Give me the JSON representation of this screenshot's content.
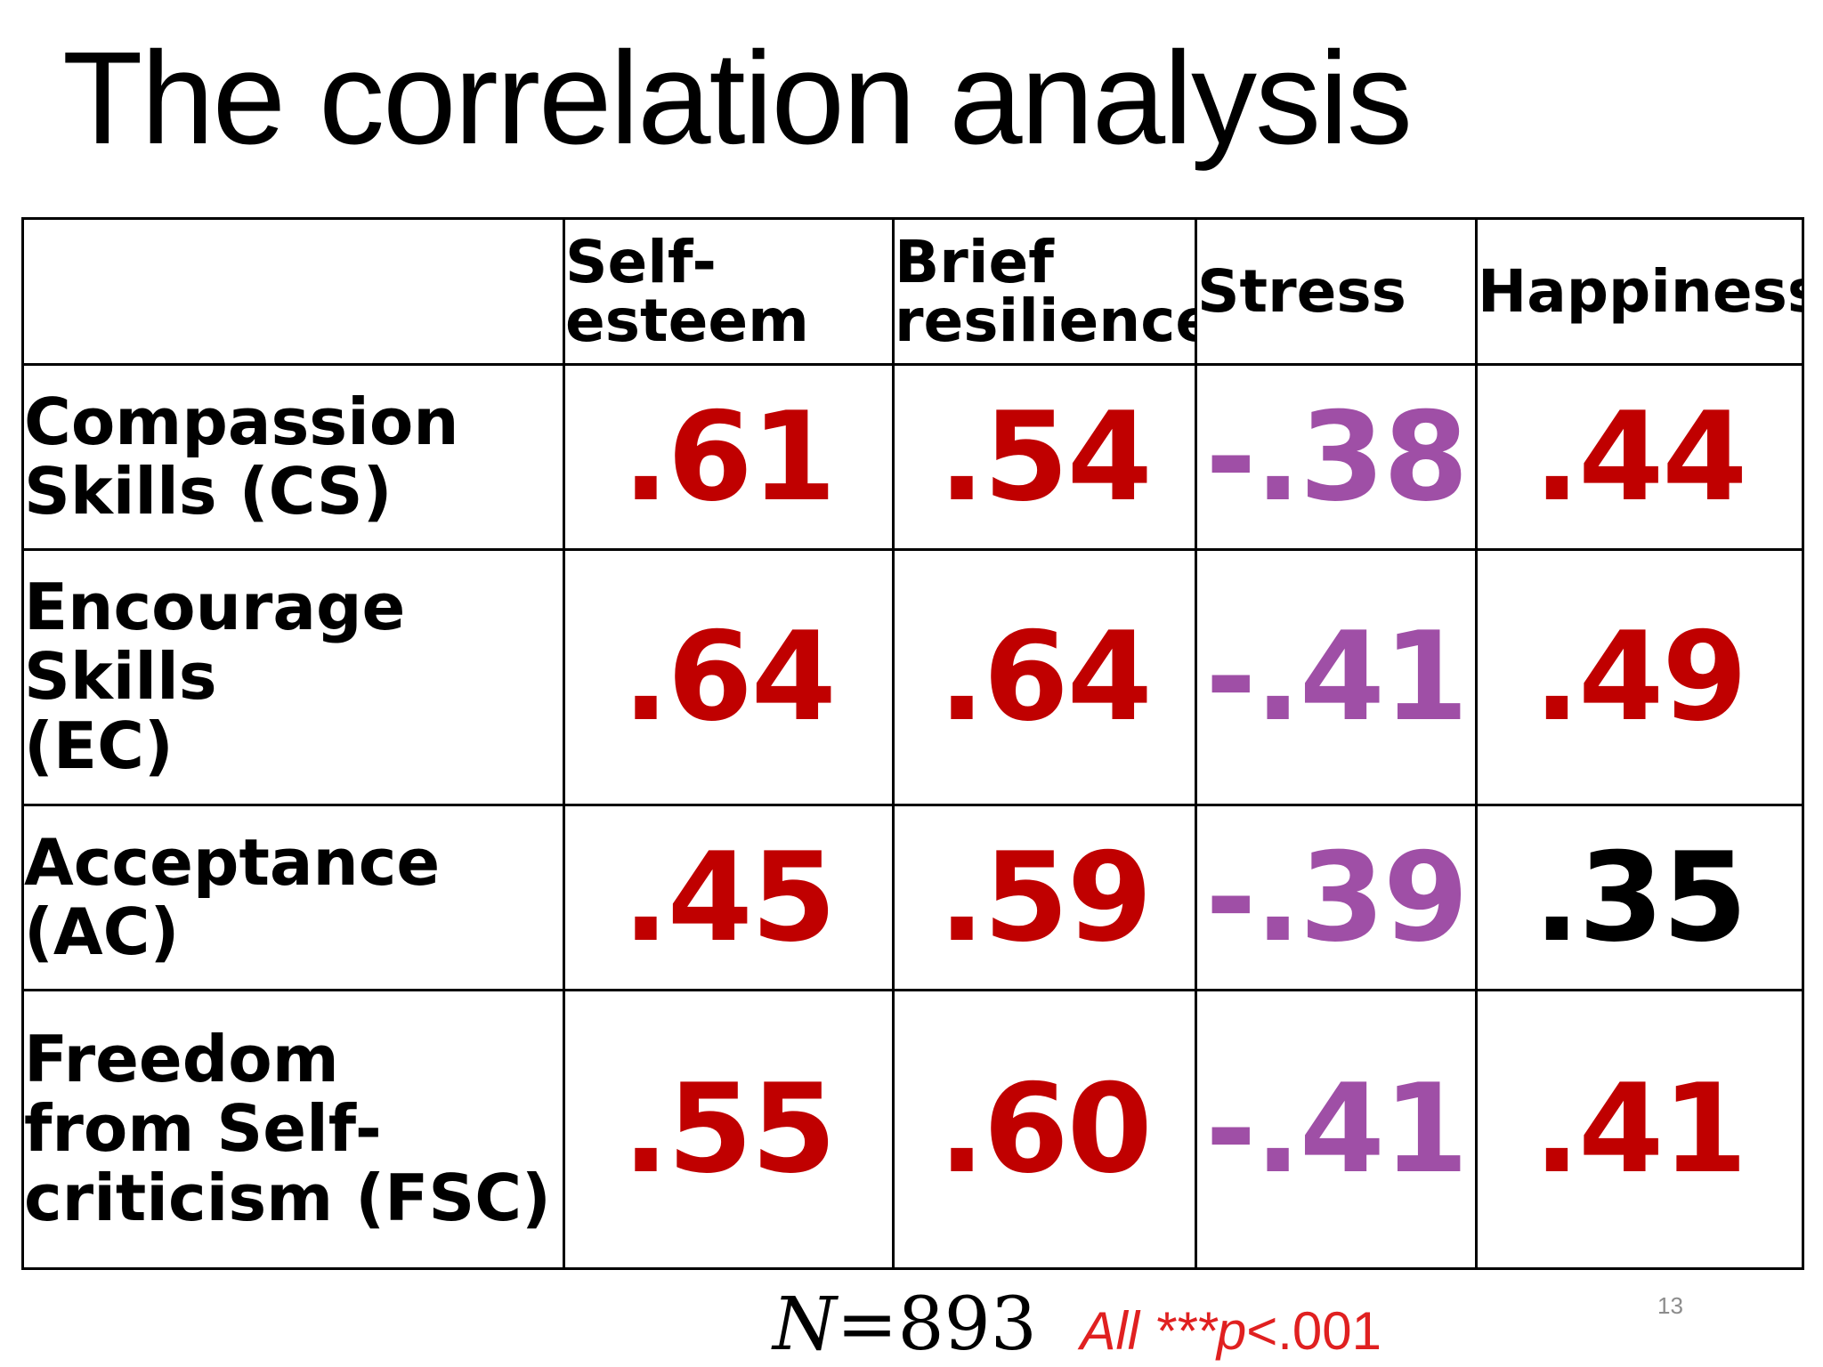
{
  "slide": {
    "title": "The correlation analysis",
    "page_number": "13"
  },
  "colors": {
    "significant": "#c00000",
    "negative": "#9f4fa6",
    "default": "#000000"
  },
  "table": {
    "columns": [
      "Self-\nesteem",
      "Brief\nresilience",
      "Stress",
      "Happiness"
    ],
    "rows": [
      {
        "label": "Compassion\nSkills (CS)",
        "values": [
          {
            "text": ".61",
            "color": "#c00000"
          },
          {
            "text": ".54",
            "color": "#c00000"
          },
          {
            "text": "-.38",
            "color": "#9f4fa6"
          },
          {
            "text": ".44",
            "color": "#c00000"
          }
        ]
      },
      {
        "label": "Encourage\nSkills\n(EC)",
        "values": [
          {
            "text": ".64",
            "color": "#c00000"
          },
          {
            "text": ".64",
            "color": "#c00000"
          },
          {
            "text": "-.41",
            "color": "#9f4fa6"
          },
          {
            "text": ".49",
            "color": "#c00000"
          }
        ]
      },
      {
        "label": "Acceptance\n(AC)",
        "values": [
          {
            "text": ".45",
            "color": "#c00000"
          },
          {
            "text": ".59",
            "color": "#c00000"
          },
          {
            "text": "-.39",
            "color": "#9f4fa6"
          },
          {
            "text": ".35",
            "color": "#000000"
          }
        ]
      },
      {
        "label": "Freedom\nfrom Self-\ncriticism (FSC)",
        "values": [
          {
            "text": ".55",
            "color": "#c00000"
          },
          {
            "text": ".60",
            "color": "#c00000"
          },
          {
            "text": "-.41",
            "color": "#9f4fa6"
          },
          {
            "text": ".41",
            "color": "#c00000"
          }
        ]
      }
    ]
  },
  "footnote": {
    "n_symbol": "N",
    "n_value": "=893",
    "p_prefix": "All ***",
    "p_symbol": "p",
    "p_suffix": "<.001",
    "p_color": "#e02020"
  }
}
